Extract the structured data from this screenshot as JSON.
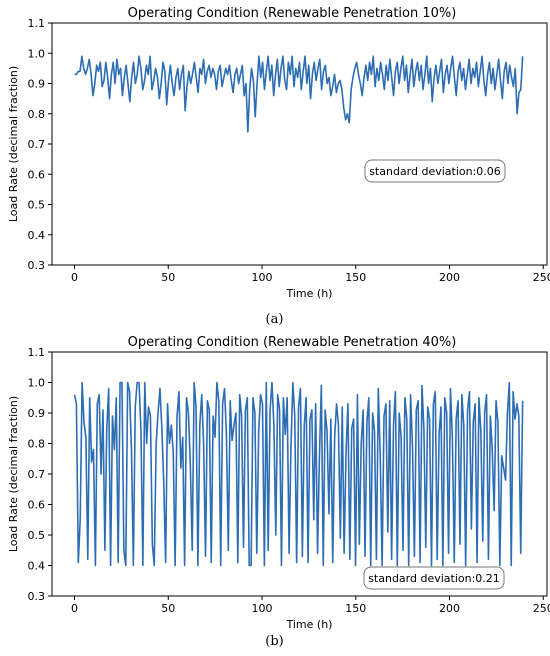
{
  "chart_data": [
    {
      "type": "line",
      "panel_label": "(a)",
      "title": "Operating Condition (Renewable Penetration 10%)",
      "xlabel": "Time (h)",
      "ylabel": "Load Rate (decimal fraction)",
      "xlim": [
        -12,
        252
      ],
      "ylim": [
        0.3,
        1.1
      ],
      "xticks": [
        "0",
        "50",
        "100",
        "150",
        "200",
        "250"
      ],
      "yticks": [
        "0.3",
        "0.4",
        "0.5",
        "0.6",
        "0.7",
        "0.8",
        "0.9",
        "1.0",
        "1.1"
      ],
      "annotation": "standard deviation:0.06",
      "series_color": "#2d6db3",
      "grid": false,
      "series": [
        {
          "values": [
            0.93,
            0.93,
            0.94,
            0.94,
            0.99,
            0.95,
            0.93,
            0.95,
            0.98,
            0.93,
            0.86,
            0.9,
            0.96,
            0.94,
            0.97,
            0.89,
            0.91,
            0.97,
            0.92,
            0.85,
            0.93,
            0.97,
            0.9,
            0.98,
            0.93,
            0.95,
            0.86,
            0.92,
            0.96,
            0.9,
            0.84,
            0.92,
            0.97,
            0.9,
            0.93,
            0.99,
            0.95,
            0.88,
            0.91,
            0.96,
            0.93,
            0.99,
            0.88,
            0.91,
            0.95,
            0.92,
            0.85,
            0.9,
            0.97,
            0.94,
            0.83,
            0.91,
            0.96,
            0.9,
            0.86,
            0.92,
            0.95,
            0.88,
            0.93,
            0.96,
            0.81,
            0.89,
            0.94,
            0.9,
            0.93,
            0.97,
            0.92,
            0.87,
            0.95,
            0.93,
            0.98,
            0.9,
            0.94,
            0.96,
            0.92,
            0.95,
            0.93,
            0.88,
            0.94,
            0.96,
            0.89,
            0.92,
            0.95,
            0.93,
            0.96,
            0.91,
            0.87,
            0.93,
            0.95,
            0.9,
            0.93,
            0.96,
            0.86,
            0.9,
            0.74,
            0.88,
            0.95,
            0.91,
            0.79,
            0.9,
            0.99,
            0.92,
            0.97,
            0.88,
            0.94,
            0.99,
            0.91,
            0.96,
            0.86,
            0.93,
            0.98,
            0.89,
            0.95,
            0.99,
            0.91,
            0.88,
            0.97,
            0.93,
            0.99,
            0.89,
            0.95,
            0.92,
            0.97,
            0.88,
            0.94,
            0.99,
            0.9,
            0.96,
            0.85,
            0.93,
            0.97,
            0.91,
            0.95,
            0.98,
            0.88,
            0.94,
            0.96,
            0.9,
            0.92,
            0.86,
            0.89,
            0.93,
            0.87,
            0.9,
            0.91,
            0.88,
            0.82,
            0.78,
            0.8,
            0.77,
            0.88,
            0.92,
            0.95,
            0.97,
            0.93,
            0.9,
            0.86,
            0.92,
            0.96,
            0.91,
            0.97,
            0.93,
            0.99,
            0.89,
            0.95,
            0.91,
            0.97,
            0.93,
            0.88,
            0.96,
            0.91,
            0.98,
            0.92,
            0.86,
            0.94,
            0.97,
            0.9,
            0.95,
            0.99,
            0.91,
            0.96,
            0.87,
            0.93,
            0.98,
            0.89,
            0.94,
            0.97,
            0.91,
            0.96,
            0.88,
            0.93,
            0.99,
            0.9,
            0.95,
            0.84,
            0.92,
            0.96,
            0.9,
            0.94,
            0.98,
            0.87,
            0.93,
            0.96,
            0.9,
            0.95,
            0.99,
            0.92,
            0.86,
            0.94,
            0.97,
            0.91,
            0.95,
            0.88,
            0.93,
            0.98,
            0.9,
            0.95,
            0.92,
            0.97,
            0.89,
            0.94,
            0.99,
            0.91,
            0.86,
            0.93,
            0.97,
            0.9,
            0.95,
            0.88,
            0.93,
            0.98,
            0.91,
            0.85,
            0.94,
            0.97,
            0.9,
            0.96,
            0.92,
            0.89,
            0.95,
            0.8,
            0.87,
            0.88,
            0.99
          ]
        }
      ]
    },
    {
      "type": "line",
      "panel_label": "(b)",
      "title": "Operating Condition (Renewable Penetration 40%)",
      "xlabel": "Time (h)",
      "ylabel": "Load Rate (decimal fraction)",
      "xlim": [
        -12,
        252
      ],
      "ylim": [
        0.3,
        1.1
      ],
      "xticks": [
        "0",
        "50",
        "100",
        "150",
        "200",
        "250"
      ],
      "yticks": [
        "0.3",
        "0.4",
        "0.5",
        "0.6",
        "0.7",
        "0.8",
        "0.9",
        "1.0",
        "1.1"
      ],
      "annotation": "standard deviation:0.21",
      "series_color": "#2d6db3",
      "grid": false,
      "series": [
        {
          "values": [
            0.96,
            0.93,
            0.41,
            0.55,
            1.0,
            0.87,
            0.82,
            0.42,
            0.95,
            0.74,
            0.78,
            0.4,
            0.93,
            0.96,
            0.7,
            0.91,
            0.45,
            0.85,
            0.98,
            0.4,
            0.89,
            0.78,
            0.95,
            0.41,
            1.0,
            1.0,
            0.45,
            0.4,
            1.0,
            0.97,
            0.78,
            0.4,
            0.92,
            1.0,
            1.0,
            0.84,
            0.4,
            1.0,
            0.8,
            0.92,
            0.89,
            0.47,
            0.4,
            0.8,
            0.9,
            0.98,
            0.85,
            0.67,
            0.41,
            0.93,
            0.8,
            0.86,
            0.77,
            0.4,
            0.89,
            0.97,
            0.72,
            0.82,
            0.4,
            0.95,
            0.9,
            0.73,
            0.45,
            1.0,
            0.92,
            0.4,
            0.86,
            0.96,
            0.8,
            0.43,
            0.94,
            0.91,
            0.41,
            0.89,
            0.82,
            1.0,
            0.94,
            0.4,
            0.93,
            0.98,
            0.83,
            0.45,
            0.94,
            0.81,
            0.86,
            0.9,
            0.41,
            0.96,
            0.89,
            0.46,
            0.91,
            0.95,
            0.4,
            0.4,
            0.95,
            0.9,
            0.44,
            0.84,
            0.96,
            0.93,
            0.4,
            1.0,
            0.45,
            0.91,
            1.0,
            0.86,
            0.5,
            0.96,
            0.91,
            0.4,
            0.95,
            0.83,
            0.95,
            0.44,
            0.79,
            1.0,
            0.89,
            0.41,
            0.92,
            0.98,
            0.43,
            0.86,
            0.95,
            0.41,
            0.88,
            0.91,
            0.55,
            0.93,
            0.44,
            0.76,
            0.99,
            0.4,
            0.91,
            0.84,
            0.57,
            0.88,
            0.41,
            0.82,
            0.93,
            0.86,
            0.49,
            0.92,
            0.44,
            0.77,
            0.93,
            0.42,
            0.85,
            0.88,
            0.4,
            0.96,
            0.47,
            0.8,
            0.91,
            0.43,
            0.87,
            0.95,
            0.4,
            0.9,
            0.84,
            0.42,
            0.98,
            0.76,
            0.4,
            0.89,
            0.93,
            0.51,
            0.94,
            0.42,
            0.86,
            0.97,
            0.4,
            0.9,
            0.82,
            0.45,
            0.95,
            0.88,
            0.4,
            0.96,
            0.79,
            0.43,
            0.91,
            0.94,
            0.41,
            0.99,
            0.85,
            0.46,
            0.92,
            0.88,
            0.4,
            0.93,
            0.97,
            0.42,
            0.83,
            0.92,
            0.4,
            0.95,
            0.9,
            0.44,
            0.98,
            0.82,
            0.41,
            0.88,
            0.94,
            0.47,
            0.96,
            0.86,
            0.4,
            0.91,
            0.97,
            0.52,
            0.87,
            0.93,
            0.41,
            0.95,
            0.84,
            0.48,
            0.9,
            0.96,
            0.42,
            0.89,
            0.78,
            0.58,
            0.94,
            0.87,
            0.4,
            0.76,
            0.72,
            0.68,
            0.9,
            1.0,
            0.4,
            0.97,
            0.88,
            0.93,
            0.89,
            0.44,
            0.94
          ]
        }
      ]
    }
  ]
}
